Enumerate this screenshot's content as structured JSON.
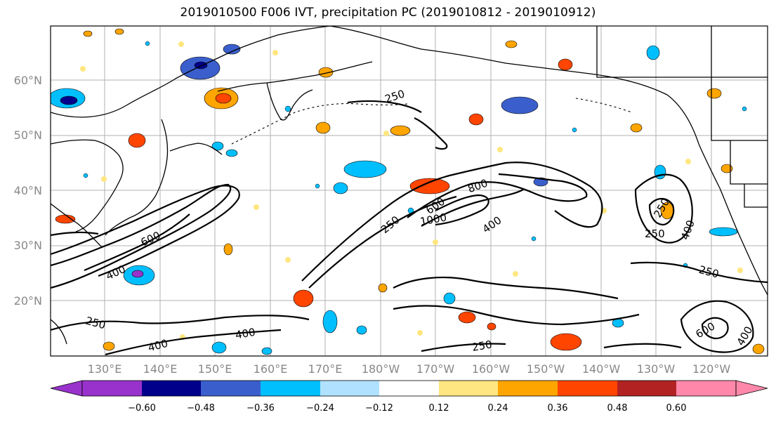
{
  "title": "2019010500 F006 IVT, precipitation PC (2019010812 - 2019010912)",
  "map": {
    "lat_labels": [
      "60°N",
      "50°N",
      "40°N",
      "30°N",
      "20°N"
    ],
    "lon_labels": [
      "130°E",
      "140°E",
      "150°E",
      "160°E",
      "170°E",
      "180°W",
      "170°W",
      "160°W",
      "150°W",
      "140°W",
      "130°W",
      "120°W"
    ],
    "contour_labels": [
      "250",
      "400",
      "600",
      "800",
      "1000",
      "250",
      "400",
      "600",
      "250",
      "400",
      "250",
      "400",
      "250",
      "400",
      "250",
      "600",
      "400",
      "250"
    ]
  },
  "colorbar": {
    "ticks": [
      "−0.60",
      "−0.48",
      "−0.36",
      "−0.24",
      "−0.12",
      "0.12",
      "0.24",
      "0.36",
      "0.48",
      "0.60"
    ],
    "colors": [
      "#9932CC",
      "#00008B",
      "#3A5FCD",
      "#00BFFF",
      "#B0E2FF",
      "#FFFFFF",
      "#FFE680",
      "#FFA500",
      "#FF4500",
      "#B22222",
      "#FF88AA"
    ]
  }
}
